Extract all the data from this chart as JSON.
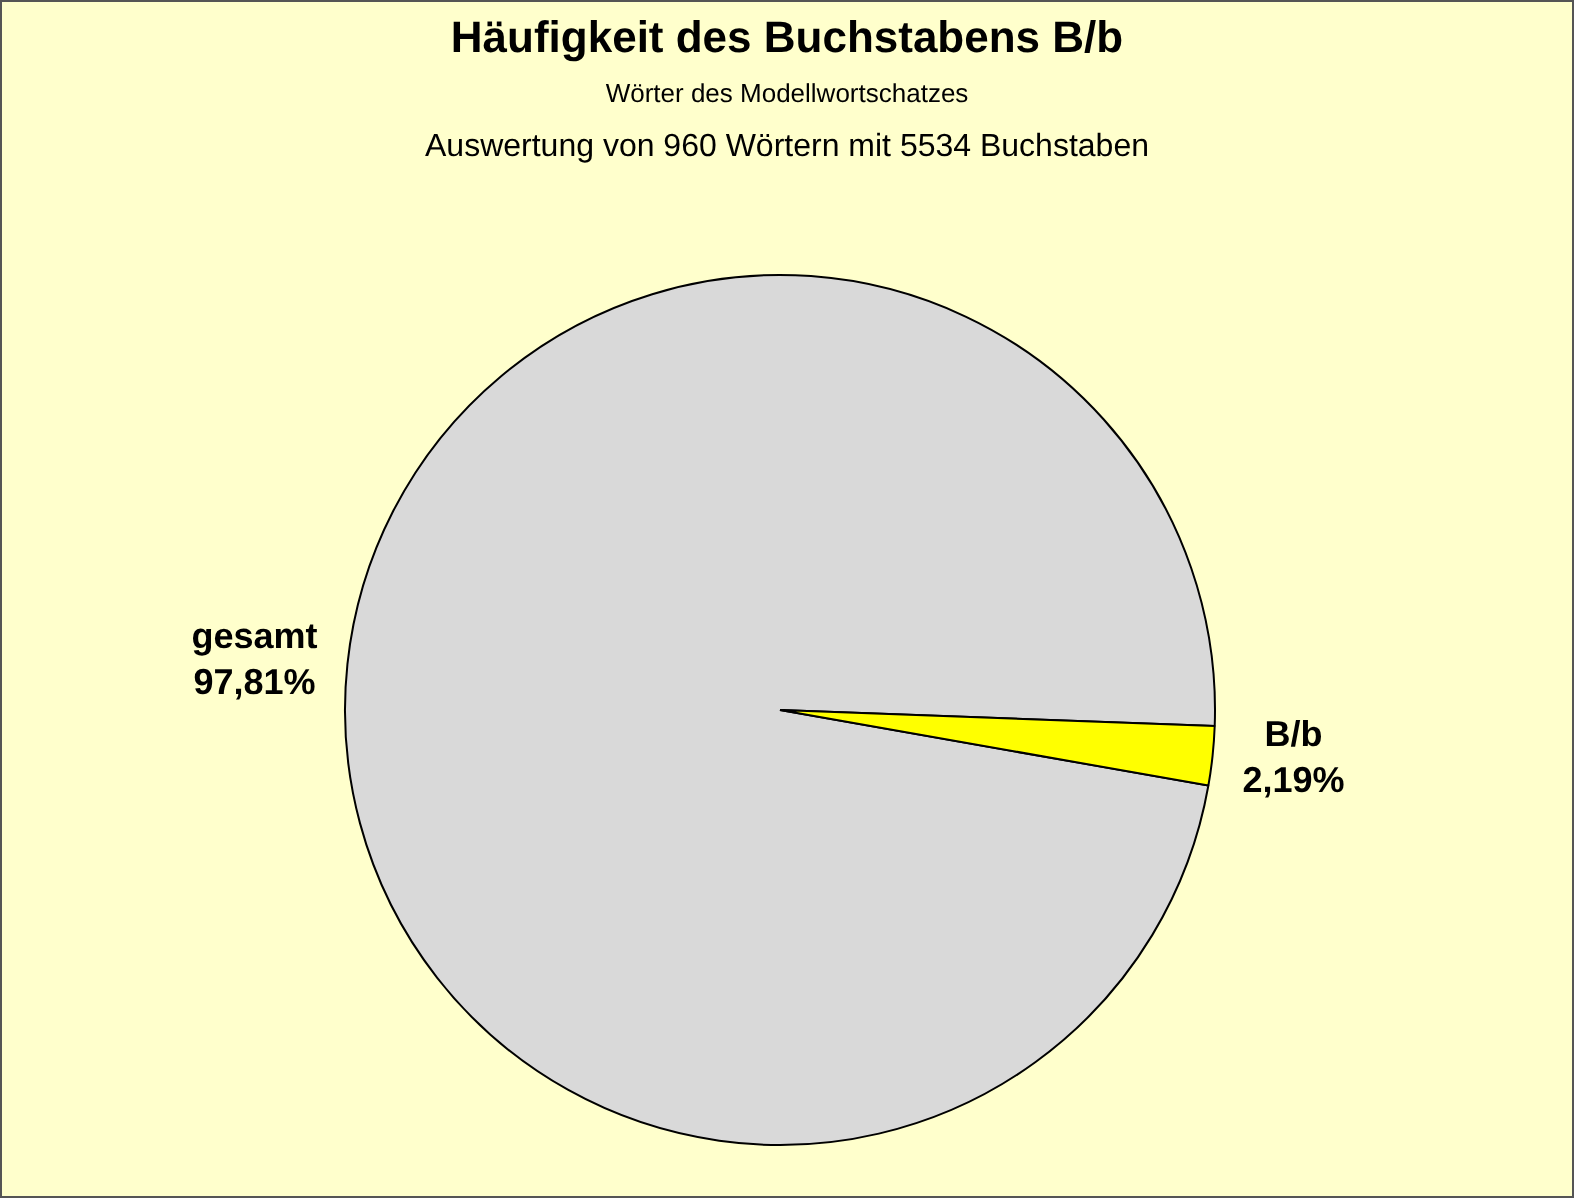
{
  "chart_data": {
    "type": "pie",
    "title": "Häufigkeit des Buchstabens B/b",
    "subtitle": "Wörter des Modellwortschatzes",
    "annotations": [
      "Auswertung von 960 Wörtern mit 5534 Buchstaben"
    ],
    "categories": [
      "gesamt",
      "B/b"
    ],
    "values": [
      97.81,
      2.19
    ],
    "colors": [
      "#d9d9d9",
      "#ffff00"
    ],
    "value_labels": [
      "97,81%",
      "2,19%"
    ]
  }
}
